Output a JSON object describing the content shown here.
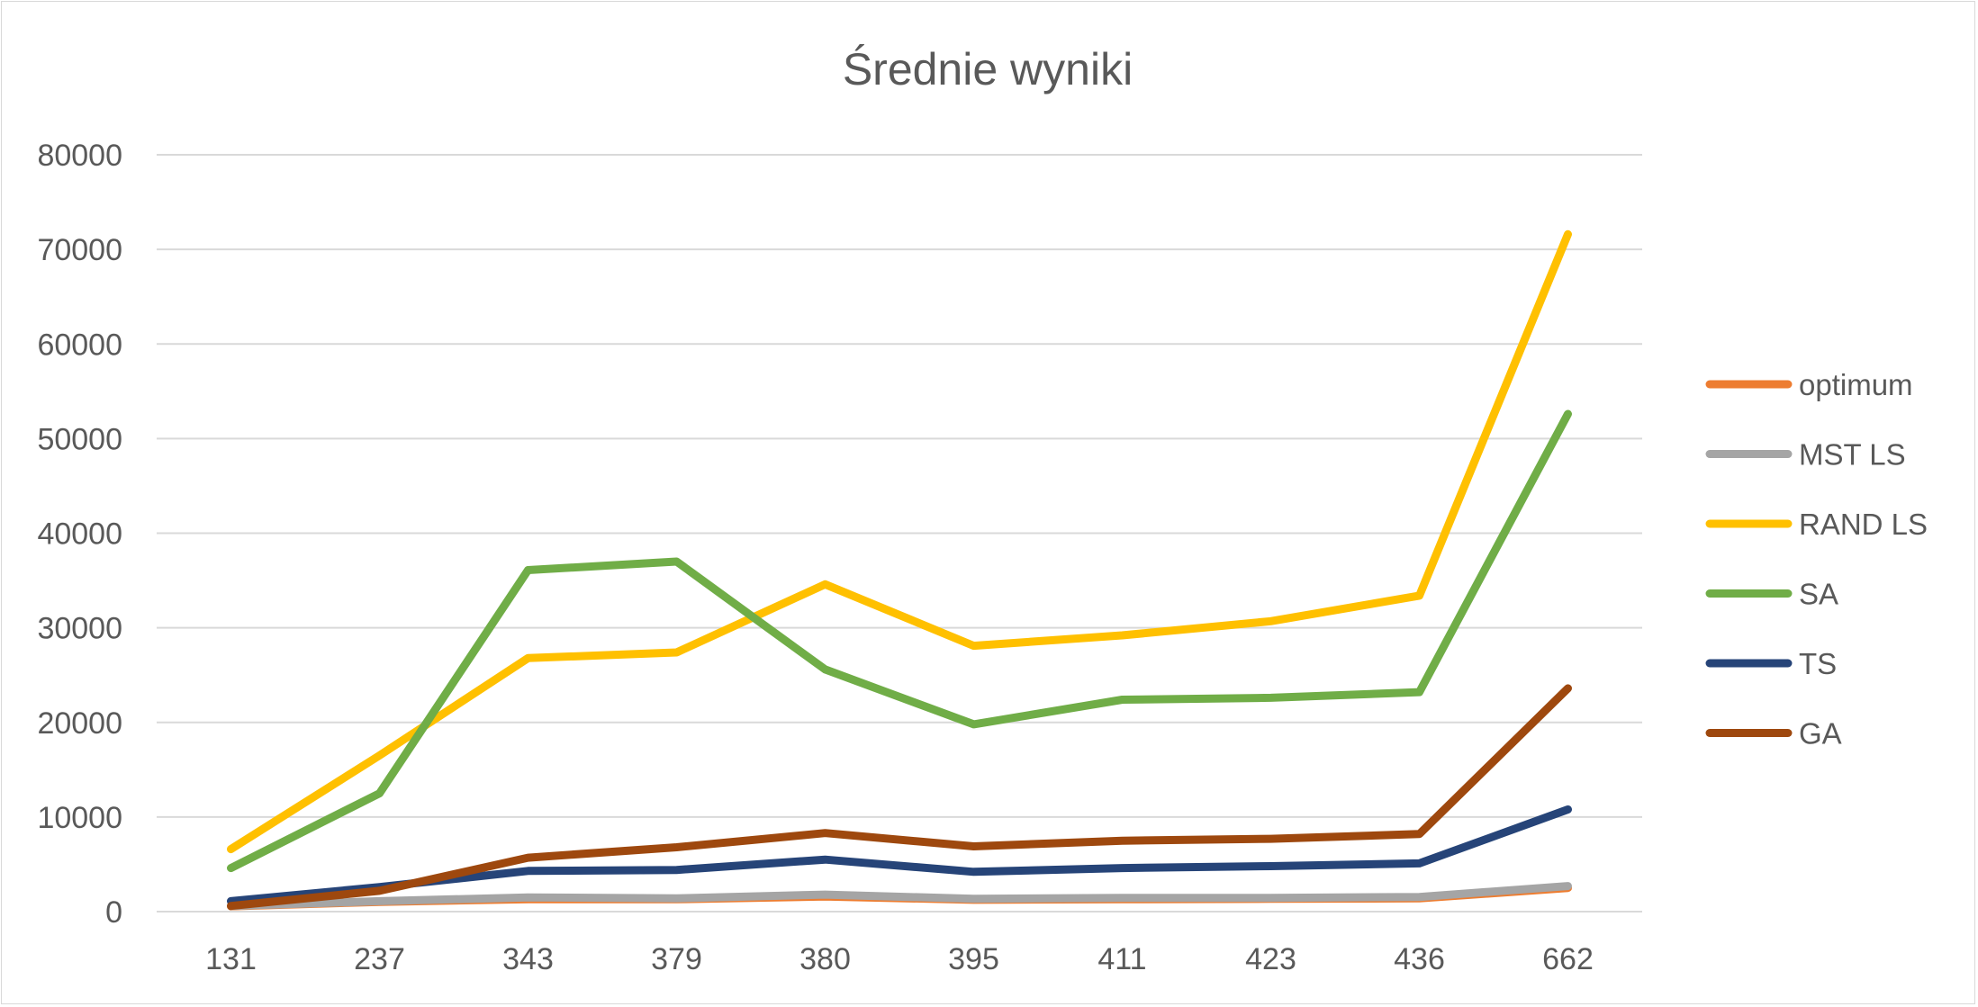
{
  "chart_data": {
    "type": "line",
    "title": "Średnie wyniki",
    "xlabel": "",
    "ylabel": "",
    "categories": [
      "131",
      "237",
      "343",
      "379",
      "380",
      "395",
      "411",
      "423",
      "436",
      "662"
    ],
    "ylim": [
      0,
      80000
    ],
    "yticks": [
      "0",
      "10000",
      "20000",
      "30000",
      "40000",
      "50000",
      "60000",
      "70000",
      "80000"
    ],
    "grid": true,
    "legend_position": "right",
    "series": [
      {
        "name": "optimum",
        "color": "#ED7D31",
        "values": [
          564,
          1030,
          1300,
          1300,
          1600,
          1250,
          1300,
          1350,
          1400,
          2500
        ]
      },
      {
        "name": "MST LS",
        "color": "#A5A5A5",
        "values": [
          600,
          1100,
          1500,
          1400,
          1800,
          1350,
          1450,
          1450,
          1550,
          2700
        ]
      },
      {
        "name": "RAND LS",
        "color": "#FFC000",
        "values": [
          6600,
          16500,
          26800,
          27400,
          34600,
          28100,
          29200,
          30700,
          33400,
          71600
        ]
      },
      {
        "name": "SA",
        "color": "#70AD47",
        "values": [
          4600,
          12500,
          36100,
          37000,
          25600,
          19800,
          22400,
          22600,
          23200,
          52600
        ]
      },
      {
        "name": "TS",
        "color": "#264478",
        "values": [
          1100,
          2600,
          4300,
          4400,
          5500,
          4200,
          4600,
          4800,
          5100,
          10800
        ]
      },
      {
        "name": "GA",
        "color": "#9E480E",
        "values": [
          600,
          2200,
          5700,
          6800,
          8300,
          6900,
          7500,
          7700,
          8200,
          23600
        ]
      }
    ]
  }
}
